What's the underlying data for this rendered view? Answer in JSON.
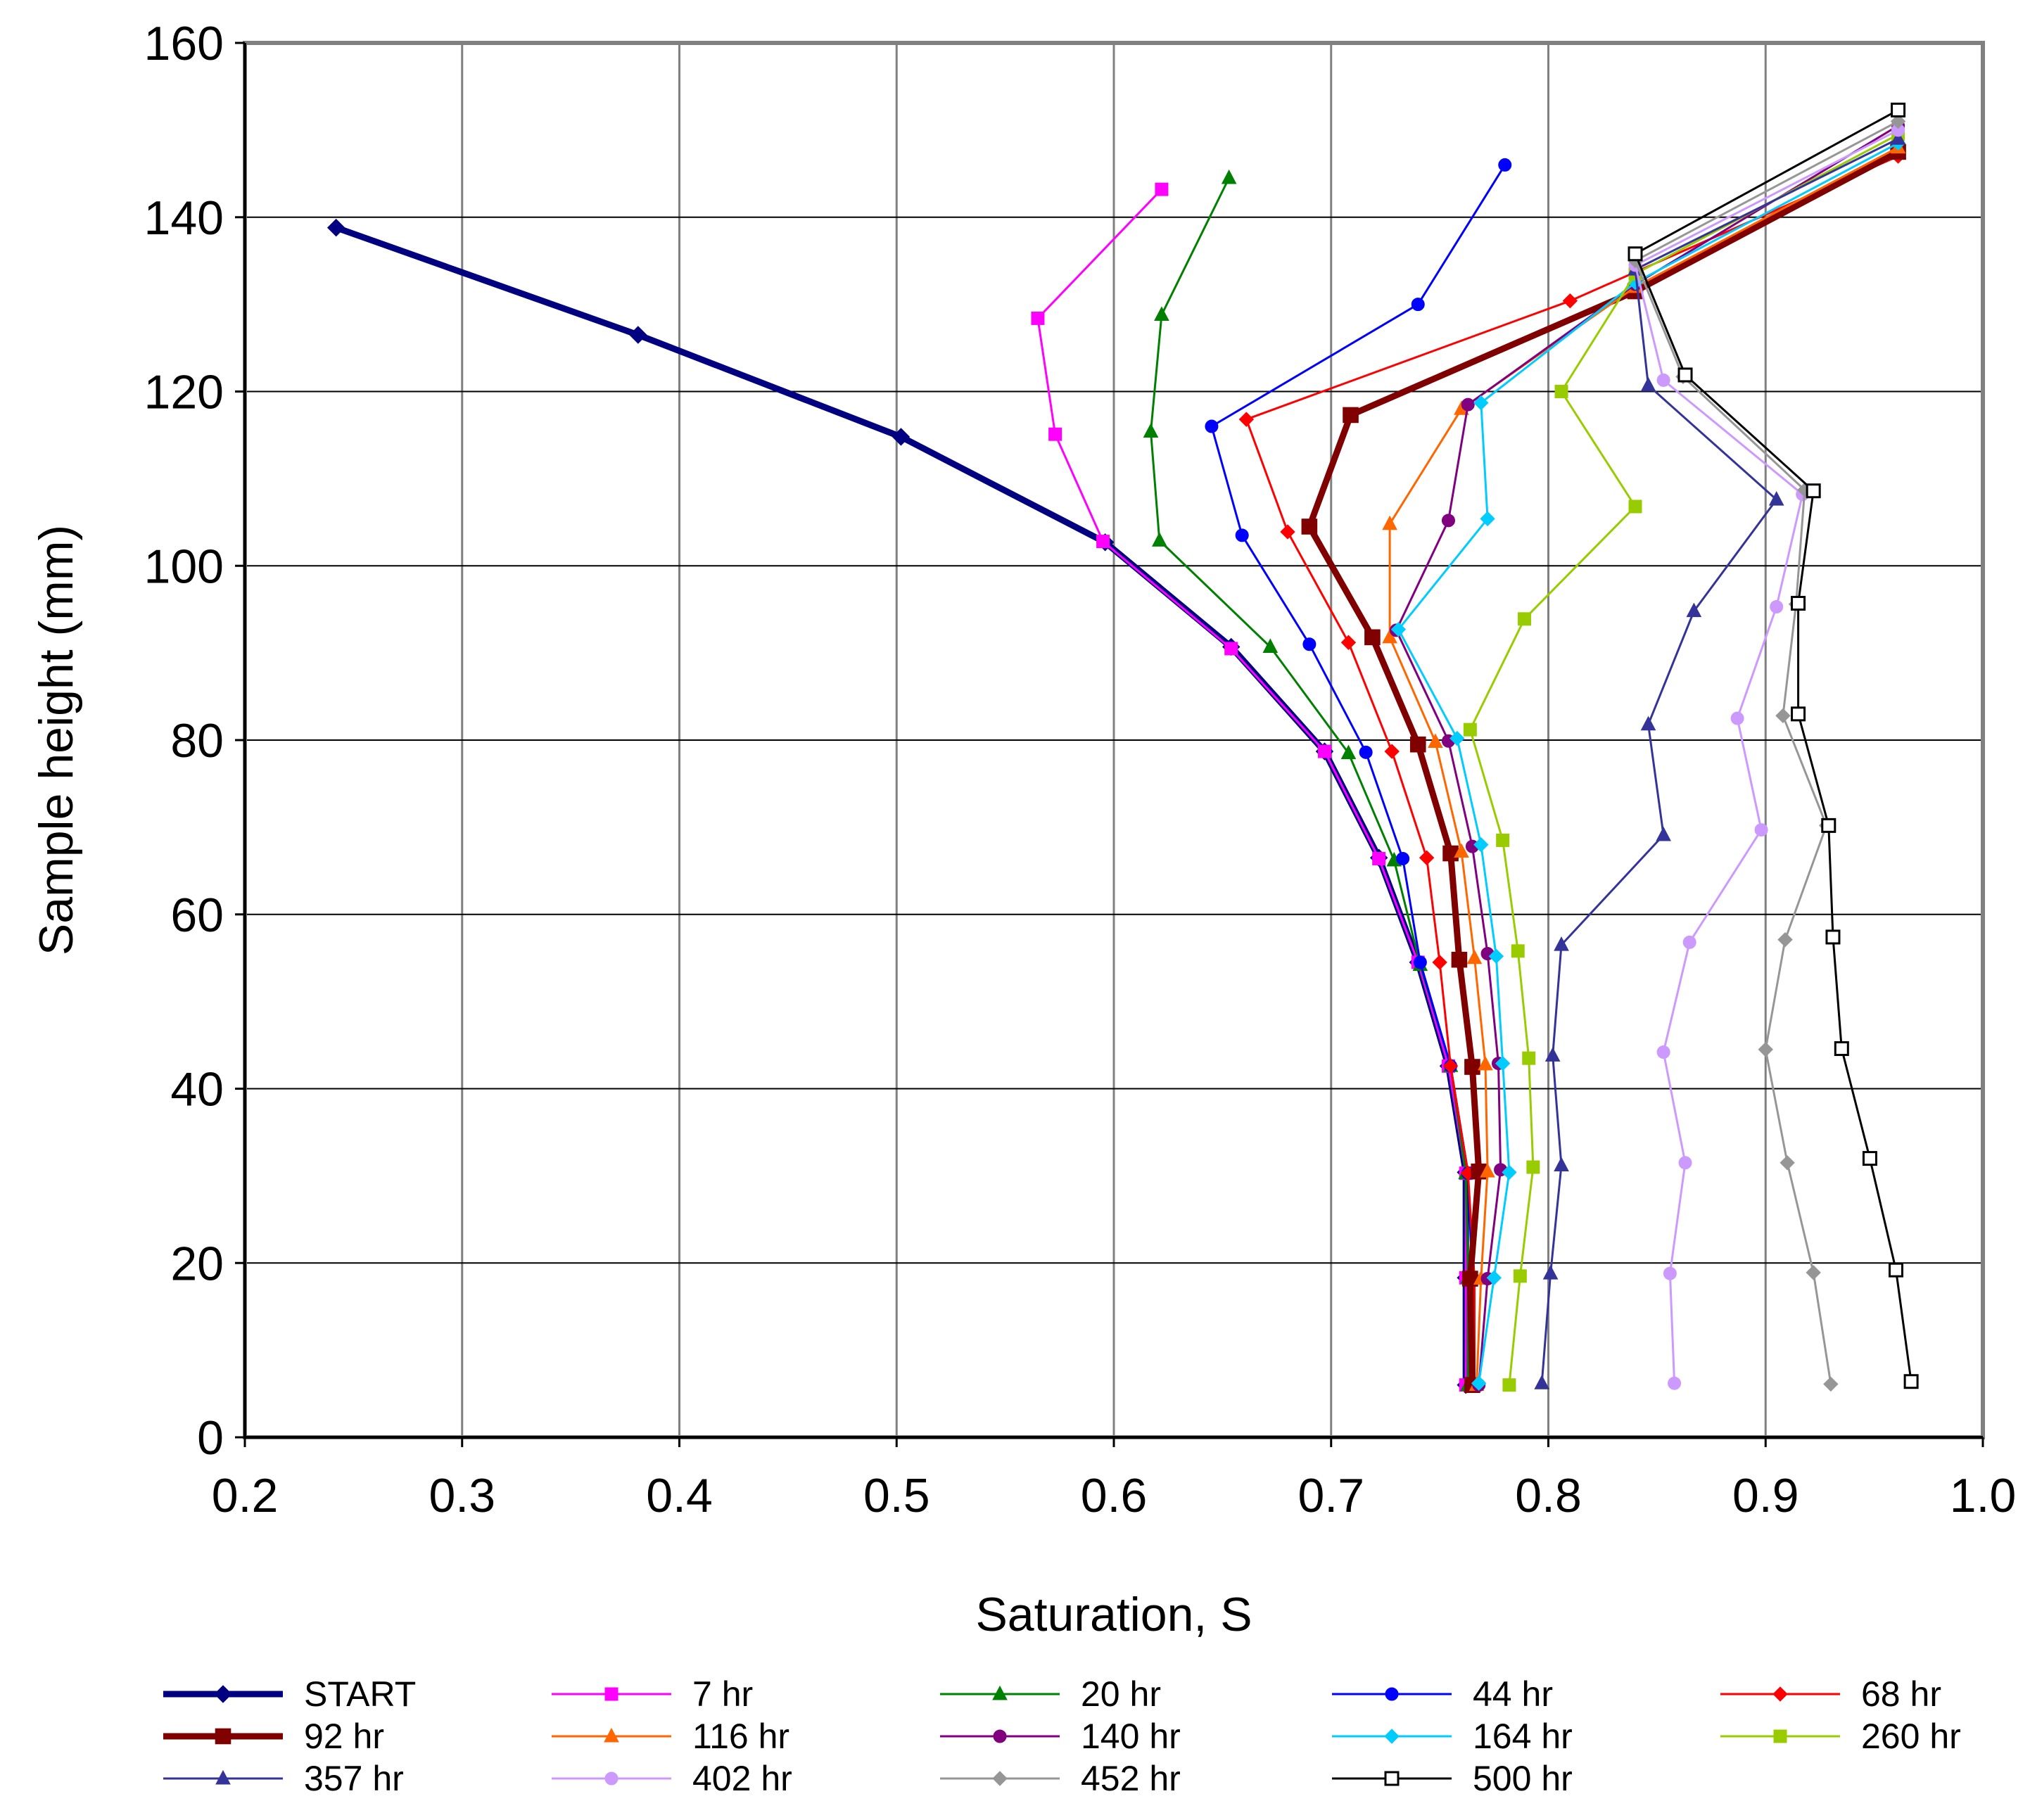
{
  "chart_data": {
    "type": "line",
    "title": "",
    "xlabel": "Saturation, S",
    "ylabel": "Sample height (mm)",
    "xlim": [
      0.2,
      1.0
    ],
    "ylim": [
      0,
      160
    ],
    "xticks": [
      "0.2",
      "0.3",
      "0.4",
      "0.5",
      "0.6",
      "0.7",
      "0.8",
      "0.9",
      "1.0"
    ],
    "yticks": [
      "0",
      "20",
      "40",
      "60",
      "80",
      "100",
      "120",
      "140",
      "160"
    ],
    "grid": true,
    "legend_position": "bottom",
    "series": [
      {
        "name": "START",
        "color": "#000080",
        "marker": "diamond",
        "weight": "bold",
        "points": [
          [
            0.242,
            138.8
          ],
          [
            0.381,
            126.5
          ],
          [
            0.502,
            114.8
          ],
          [
            0.596,
            102.7
          ],
          [
            0.654,
            90.7
          ],
          [
            0.697,
            78.7
          ],
          [
            0.722,
            66.5
          ],
          [
            0.74,
            54.5
          ],
          [
            0.754,
            42.6
          ],
          [
            0.762,
            30.4
          ],
          [
            0.762,
            18.3
          ],
          [
            0.762,
            6.0
          ]
        ]
      },
      {
        "name": "7 hr",
        "color": "#FF00FF",
        "marker": "square",
        "weight": "normal",
        "points": [
          [
            0.622,
            143.2
          ],
          [
            0.565,
            128.4
          ],
          [
            0.573,
            115.1
          ],
          [
            0.595,
            102.8
          ],
          [
            0.654,
            90.5
          ],
          [
            0.697,
            78.7
          ],
          [
            0.722,
            66.4
          ],
          [
            0.74,
            54.5
          ],
          [
            0.754,
            42.6
          ],
          [
            0.762,
            30.3
          ],
          [
            0.762,
            18.3
          ],
          [
            0.762,
            6.0
          ]
        ]
      },
      {
        "name": "20 hr",
        "color": "#008000",
        "marker": "triangle",
        "weight": "normal",
        "points": [
          [
            0.653,
            144.5
          ],
          [
            0.622,
            128.8
          ],
          [
            0.617,
            115.4
          ],
          [
            0.621,
            102.9
          ],
          [
            0.672,
            90.7
          ],
          [
            0.708,
            78.5
          ],
          [
            0.729,
            66.2
          ],
          [
            0.741,
            54.2
          ],
          [
            0.755,
            42.6
          ],
          [
            0.762,
            30.3
          ],
          [
            0.763,
            18.3
          ],
          [
            0.763,
            6.0
          ]
        ]
      },
      {
        "name": "44 hr",
        "color": "#0000FF",
        "marker": "circle",
        "weight": "normal",
        "points": [
          [
            0.78,
            146.0
          ],
          [
            0.74,
            130.0
          ],
          [
            0.645,
            116.0
          ],
          [
            0.659,
            103.5
          ],
          [
            0.69,
            91.0
          ],
          [
            0.716,
            78.6
          ],
          [
            0.733,
            66.4
          ],
          [
            0.741,
            54.5
          ],
          [
            0.755,
            42.6
          ],
          [
            0.763,
            30.3
          ],
          [
            0.765,
            18.3
          ],
          [
            0.765,
            6.0
          ]
        ]
      },
      {
        "name": "68 hr",
        "color": "#FF0000",
        "marker": "diamond",
        "weight": "normal",
        "points": [
          [
            0.961,
            147.0
          ],
          [
            0.81,
            130.4
          ],
          [
            0.661,
            116.8
          ],
          [
            0.68,
            103.9
          ],
          [
            0.708,
            91.2
          ],
          [
            0.728,
            78.7
          ],
          [
            0.744,
            66.5
          ],
          [
            0.75,
            54.5
          ],
          [
            0.755,
            42.6
          ],
          [
            0.763,
            30.3
          ],
          [
            0.766,
            18.2
          ],
          [
            0.766,
            6.0
          ]
        ]
      },
      {
        "name": "92 hr",
        "color": "#800000",
        "marker": "square",
        "weight": "bold",
        "points": [
          [
            0.961,
            147.5
          ],
          [
            0.84,
            131.5
          ],
          [
            0.709,
            117.3
          ],
          [
            0.69,
            104.5
          ],
          [
            0.719,
            91.8
          ],
          [
            0.74,
            79.5
          ],
          [
            0.755,
            67.0
          ],
          [
            0.759,
            54.8
          ],
          [
            0.765,
            42.5
          ],
          [
            0.768,
            30.5
          ],
          [
            0.764,
            18.2
          ],
          [
            0.765,
            6.0
          ]
        ]
      },
      {
        "name": "116 hr",
        "color": "#FF6600",
        "marker": "triangle",
        "weight": "normal",
        "points": [
          [
            0.961,
            148.0
          ],
          [
            0.84,
            132.0
          ],
          [
            0.76,
            118.0
          ],
          [
            0.727,
            104.8
          ],
          [
            0.727,
            91.8
          ],
          [
            0.748,
            79.8
          ],
          [
            0.76,
            67.2
          ],
          [
            0.766,
            55.0
          ],
          [
            0.771,
            42.8
          ],
          [
            0.772,
            30.5
          ],
          [
            0.769,
            18.2
          ],
          [
            0.767,
            6.0
          ]
        ]
      },
      {
        "name": "140 hr",
        "color": "#800080",
        "marker": "circle",
        "weight": "normal",
        "points": [
          [
            0.961,
            150.5
          ],
          [
            0.84,
            132.3
          ],
          [
            0.763,
            118.5
          ],
          [
            0.754,
            105.2
          ],
          [
            0.73,
            92.6
          ],
          [
            0.754,
            79.9
          ],
          [
            0.765,
            67.8
          ],
          [
            0.772,
            55.5
          ],
          [
            0.777,
            42.9
          ],
          [
            0.778,
            30.7
          ],
          [
            0.772,
            18.2
          ],
          [
            0.768,
            6.0
          ]
        ]
      },
      {
        "name": "164 hr",
        "color": "#00CCFF",
        "marker": "diamond",
        "weight": "normal",
        "points": [
          [
            0.961,
            148.5
          ],
          [
            0.84,
            132.5
          ],
          [
            0.769,
            118.7
          ],
          [
            0.772,
            105.4
          ],
          [
            0.731,
            92.7
          ],
          [
            0.758,
            80.2
          ],
          [
            0.769,
            68.0
          ],
          [
            0.776,
            55.2
          ],
          [
            0.779,
            42.9
          ],
          [
            0.782,
            30.4
          ],
          [
            0.775,
            18.3
          ],
          [
            0.768,
            6.2
          ]
        ]
      },
      {
        "name": "260 hr",
        "color": "#99CC00",
        "marker": "square",
        "weight": "normal",
        "points": [
          [
            0.961,
            149.5
          ],
          [
            0.84,
            133.5
          ],
          [
            0.806,
            120.0
          ],
          [
            0.84,
            106.8
          ],
          [
            0.789,
            93.9
          ],
          [
            0.764,
            81.2
          ],
          [
            0.779,
            68.5
          ],
          [
            0.786,
            55.8
          ],
          [
            0.791,
            43.5
          ],
          [
            0.793,
            31.0
          ],
          [
            0.787,
            18.5
          ],
          [
            0.782,
            6.0
          ]
        ]
      },
      {
        "name": "357 hr",
        "color": "#333399",
        "marker": "triangle",
        "weight": "normal",
        "points": [
          [
            0.961,
            149.0
          ],
          [
            0.84,
            134.0
          ],
          [
            0.846,
            120.7
          ],
          [
            0.905,
            107.6
          ],
          [
            0.867,
            94.8
          ],
          [
            0.846,
            81.8
          ],
          [
            0.853,
            69.1
          ],
          [
            0.806,
            56.5
          ],
          [
            0.802,
            43.8
          ],
          [
            0.806,
            31.2
          ],
          [
            0.801,
            18.8
          ],
          [
            0.797,
            6.2
          ]
        ]
      },
      {
        "name": "402 hr",
        "color": "#CC99FF",
        "marker": "circle",
        "weight": "normal",
        "points": [
          [
            0.961,
            150.0
          ],
          [
            0.84,
            134.5
          ],
          [
            0.853,
            121.3
          ],
          [
            0.917,
            108.2
          ],
          [
            0.905,
            95.3
          ],
          [
            0.887,
            82.5
          ],
          [
            0.898,
            69.7
          ],
          [
            0.865,
            56.8
          ],
          [
            0.853,
            44.2
          ],
          [
            0.863,
            31.5
          ],
          [
            0.856,
            18.8
          ],
          [
            0.858,
            6.2
          ]
        ]
      },
      {
        "name": "452 hr",
        "color": "#969696",
        "marker": "diamond",
        "weight": "normal",
        "points": [
          [
            0.961,
            151.0
          ],
          [
            0.84,
            135.0
          ],
          [
            0.862,
            121.7
          ],
          [
            0.918,
            108.7
          ],
          [
            0.914,
            95.6
          ],
          [
            0.908,
            82.8
          ],
          [
            0.928,
            70.2
          ],
          [
            0.909,
            57.1
          ],
          [
            0.9,
            44.5
          ],
          [
            0.91,
            31.5
          ],
          [
            0.922,
            18.9
          ],
          [
            0.93,
            6.1
          ]
        ]
      },
      {
        "name": "500 hr",
        "color": "#000000",
        "marker": "open-square",
        "weight": "normal",
        "points": [
          [
            0.961,
            152.3
          ],
          [
            0.84,
            135.8
          ],
          [
            0.863,
            121.9
          ],
          [
            0.922,
            108.6
          ],
          [
            0.915,
            95.7
          ],
          [
            0.915,
            83.0
          ],
          [
            0.929,
            70.2
          ],
          [
            0.931,
            57.4
          ],
          [
            0.935,
            44.6
          ],
          [
            0.948,
            32.0
          ],
          [
            0.96,
            19.2
          ],
          [
            0.967,
            6.4
          ]
        ]
      }
    ]
  }
}
